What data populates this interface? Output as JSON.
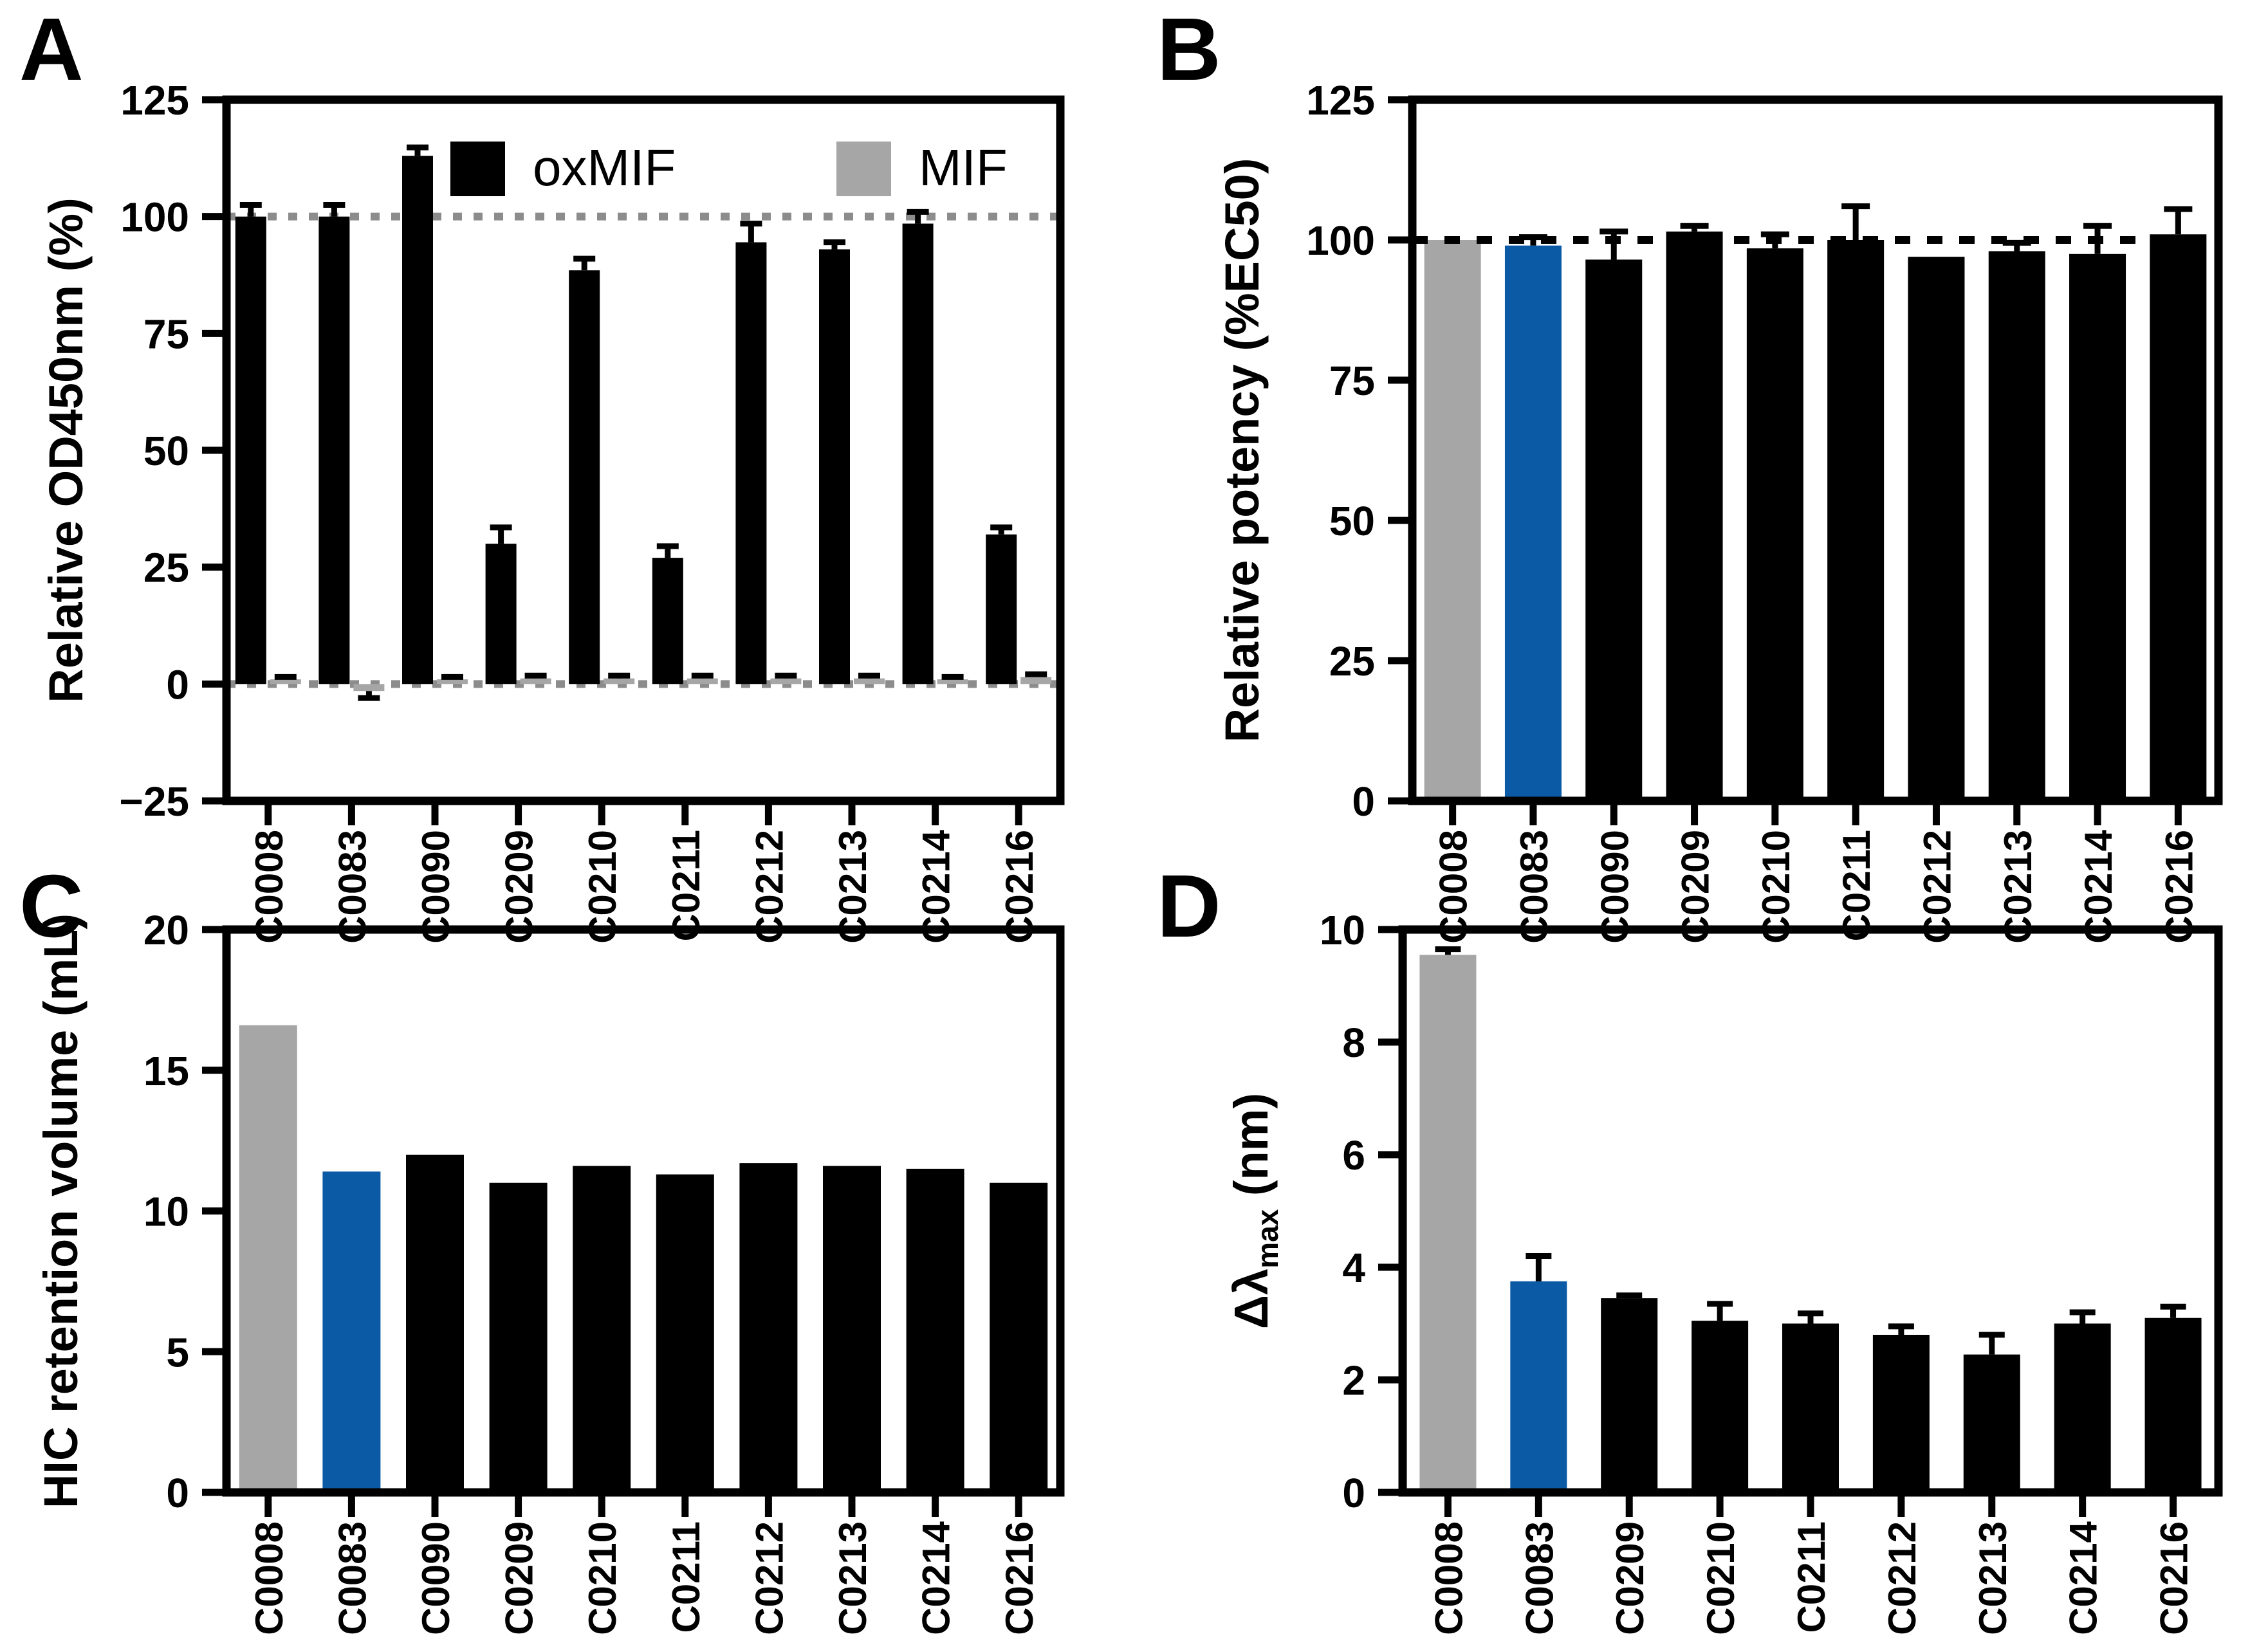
{
  "figure_colors": {
    "reference_gray_bar": "#A6A6A6",
    "lead_blue_bar": "#0B5AA6",
    "default_black_bar": "#000000",
    "panel_a_dash_line": "#8C8C8C",
    "panel_b_dash_line": "#000000"
  },
  "chart_data": [
    {
      "panel_label": "A",
      "type": "bar",
      "subtype": "grouped",
      "ylabel": "Relative OD450nm (%)",
      "ylim": [
        -25,
        125
      ],
      "yticks": [
        -25,
        0,
        25,
        50,
        75,
        100,
        125
      ],
      "grid": false,
      "legend_position": "top-inside",
      "categories": [
        "C0008",
        "C0083",
        "C0090",
        "C0209",
        "C0210",
        "C0211",
        "C0212",
        "C0213",
        "C0214",
        "C0216"
      ],
      "series": [
        {
          "name": "oxMIF",
          "color": "#000000",
          "values": [
            100,
            100,
            113,
            30,
            88.5,
            27,
            94.5,
            93,
            98.5,
            32
          ],
          "errors": [
            2.5,
            2.5,
            1.8,
            3.5,
            2.5,
            2.5,
            4,
            1.5,
            2.5,
            1.5
          ]
        },
        {
          "name": "MIF",
          "color": "#A6A6A6",
          "values": [
            1,
            -1.5,
            1,
            1.2,
            1.2,
            1.2,
            1.2,
            1.2,
            1,
            1.5
          ],
          "errors": [
            0.5,
            1.5,
            0.5,
            0.6,
            0.6,
            0.6,
            0.6,
            0.6,
            0.5,
            0.6
          ]
        }
      ],
      "ref_lines": [
        {
          "y": 100,
          "color": "#8C8C8C",
          "front": false
        },
        {
          "y": 0,
          "color": "#8C8C8C",
          "front": false
        }
      ]
    },
    {
      "panel_label": "B",
      "type": "bar",
      "ylabel": "Relative potency (%EC50)",
      "ylim": [
        0,
        125
      ],
      "yticks": [
        0,
        25,
        50,
        75,
        100,
        125
      ],
      "grid": false,
      "categories": [
        "C0008",
        "C0083",
        "C0090",
        "C0209",
        "C0210",
        "C0211",
        "C0212",
        "C0213",
        "C0214",
        "C0216"
      ],
      "values": [
        100,
        99,
        96.5,
        101.5,
        98.5,
        100,
        97,
        98,
        97.5,
        101
      ],
      "errors": [
        0,
        1.5,
        5,
        1,
        2.5,
        6,
        0,
        1.5,
        5,
        4.5
      ],
      "bar_colors": [
        "#A6A6A6",
        "#0B5AA6",
        "#000000",
        "#000000",
        "#000000",
        "#000000",
        "#000000",
        "#000000",
        "#000000",
        "#000000"
      ],
      "ref_lines": [
        {
          "y": 100,
          "color": "#000000",
          "front": true
        }
      ]
    },
    {
      "panel_label": "C",
      "type": "bar",
      "ylabel": "HIC retention volume (mL)",
      "ylim": [
        0,
        20
      ],
      "yticks": [
        0,
        5,
        10,
        15,
        20
      ],
      "grid": false,
      "categories": [
        "C0008",
        "C0083",
        "C0090",
        "C0209",
        "C0210",
        "C0211",
        "C0212",
        "C0213",
        "C0214",
        "C0216"
      ],
      "values": [
        16.6,
        11.4,
        12.0,
        11.0,
        11.6,
        11.3,
        11.7,
        11.6,
        11.5,
        11.0
      ],
      "errors": [
        0,
        0,
        0,
        0,
        0,
        0,
        0,
        0,
        0,
        0
      ],
      "bar_colors": [
        "#A6A6A6",
        "#0B5AA6",
        "#000000",
        "#000000",
        "#000000",
        "#000000",
        "#000000",
        "#000000",
        "#000000",
        "#000000"
      ],
      "ref_lines": []
    },
    {
      "panel_label": "D",
      "type": "bar",
      "ylabel_parts": [
        {
          "text": "Δλ"
        },
        {
          "text": "max",
          "sub": true
        },
        {
          "text": " (nm)"
        }
      ],
      "ylim": [
        0,
        10
      ],
      "yticks": [
        0,
        2,
        4,
        6,
        8,
        10
      ],
      "grid": false,
      "categories": [
        "C0008",
        "C0083",
        "C0209",
        "C0210",
        "C0211",
        "C0212",
        "C0213",
        "C0214",
        "C0216"
      ],
      "values": [
        9.55,
        3.75,
        3.45,
        3.05,
        3.0,
        2.8,
        2.45,
        3.0,
        3.1
      ],
      "errors": [
        0.1,
        0.45,
        0.05,
        0.3,
        0.18,
        0.15,
        0.35,
        0.2,
        0.2
      ],
      "bar_colors": [
        "#A6A6A6",
        "#0B5AA6",
        "#000000",
        "#000000",
        "#000000",
        "#000000",
        "#000000",
        "#000000",
        "#000000"
      ],
      "ref_lines": []
    }
  ]
}
